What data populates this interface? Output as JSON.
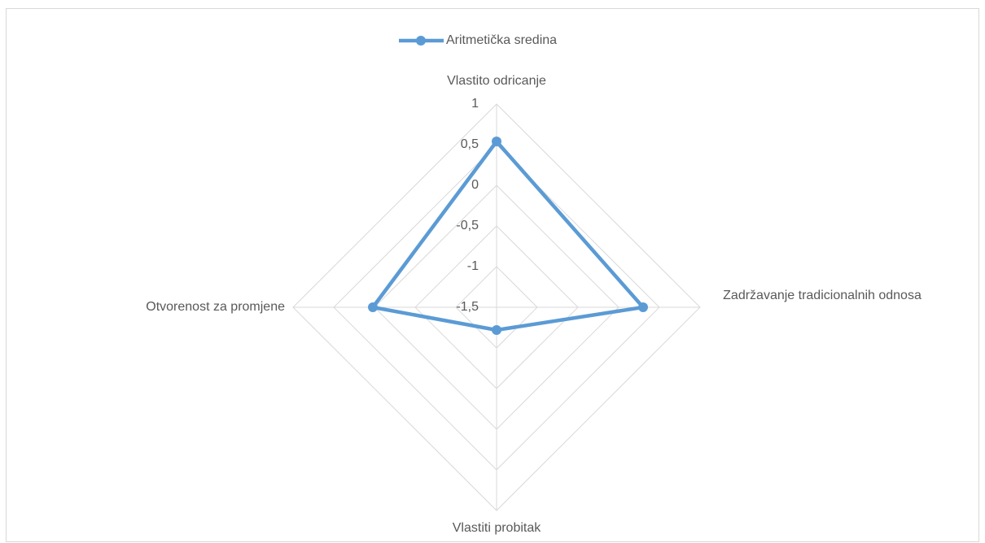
{
  "chart_data": {
    "type": "radar",
    "categories": [
      "Vlastito odricanje",
      "Zadržavanje tradicionalnih odnosa",
      "Vlastiti probitak",
      "Otvorenost za promjene"
    ],
    "series": [
      {
        "name": "Aritmetička sredina",
        "color": "#5b9bd5",
        "values": [
          0.54,
          0.3,
          -1.22,
          0.02
        ]
      }
    ],
    "ylim": [
      -1.5,
      1
    ],
    "yticks": [
      -1.5,
      -1,
      -0.5,
      0,
      0.5,
      1
    ],
    "yticklabels": [
      "-1,5",
      "-1",
      "-0,5",
      "0",
      "0,5",
      "1"
    ],
    "grid": true,
    "legend": "top"
  }
}
